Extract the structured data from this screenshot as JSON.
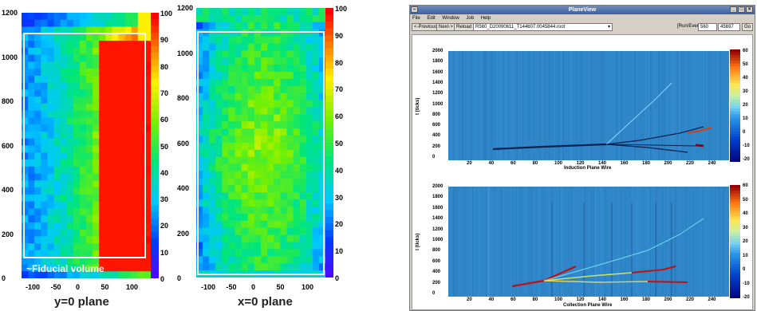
{
  "figure": {
    "left_panel": {
      "label": "y=0 plane",
      "fiducial_label": "~Fiducial volume",
      "y_ticks": [
        "1200",
        "1000",
        "800",
        "600",
        "400",
        "200",
        "0"
      ],
      "x_ticks": [
        "-100",
        "-50",
        "0",
        "50",
        "100"
      ],
      "z_ticks": [
        "100",
        "90",
        "80",
        "70",
        "60",
        "50",
        "40",
        "30",
        "20",
        "10",
        "0"
      ]
    },
    "middle_panel": {
      "label": "x=0 plane",
      "y_ticks": [
        "1200",
        "1000",
        "800",
        "600",
        "400",
        "200",
        "0"
      ],
      "x_ticks": [
        "-100",
        "-50",
        "0",
        "50",
        "100"
      ],
      "z_ticks": [
        "100",
        "90",
        "80",
        "70",
        "60",
        "50",
        "40",
        "30",
        "20",
        "10",
        "0"
      ]
    }
  },
  "app": {
    "title": "PlaneView",
    "menu": [
      "File",
      "Edit",
      "Window",
      "Job",
      "Help"
    ],
    "toolbar": {
      "previous_label": "<-Previous",
      "next_label": "Next->",
      "reload_label": "Reload",
      "file_value": "R560_D20090611_T144607.0045844.root",
      "run_event_label": "[Run/Event]=",
      "run_value": "560",
      "event_value": "45697",
      "go_label": "Go"
    },
    "induction_plot": {
      "xlabel": "Induction Plane Wire",
      "ylabel": "t (ticks)",
      "y_ticks": [
        "2000",
        "1800",
        "1600",
        "1400",
        "1200",
        "1000",
        "800",
        "600",
        "400",
        "200",
        "0"
      ],
      "x_ticks": [
        "20",
        "40",
        "60",
        "80",
        "100",
        "120",
        "140",
        "160",
        "180",
        "200",
        "220",
        "240"
      ],
      "z_ticks": [
        "60",
        "50",
        "40",
        "30",
        "20",
        "10",
        "0",
        "-10",
        "-20"
      ]
    },
    "collection_plot": {
      "xlabel": "Collection Plane Wire",
      "ylabel": "t (ticks)",
      "y_ticks": [
        "2000",
        "1800",
        "1600",
        "1400",
        "1200",
        "1000",
        "800",
        "600",
        "400",
        "200",
        "0"
      ],
      "x_ticks": [
        "20",
        "40",
        "60",
        "80",
        "100",
        "120",
        "140",
        "160",
        "180",
        "200",
        "220",
        "240"
      ],
      "z_ticks": [
        "60",
        "50",
        "40",
        "30",
        "20",
        "10",
        "0",
        "-10",
        "-20"
      ]
    }
  },
  "colors": {
    "rainbow_low": "#5a00ff",
    "rainbow_high": "#ff0000",
    "event_background": "#2f86c8",
    "fiducial_box": "#ffffff"
  }
}
